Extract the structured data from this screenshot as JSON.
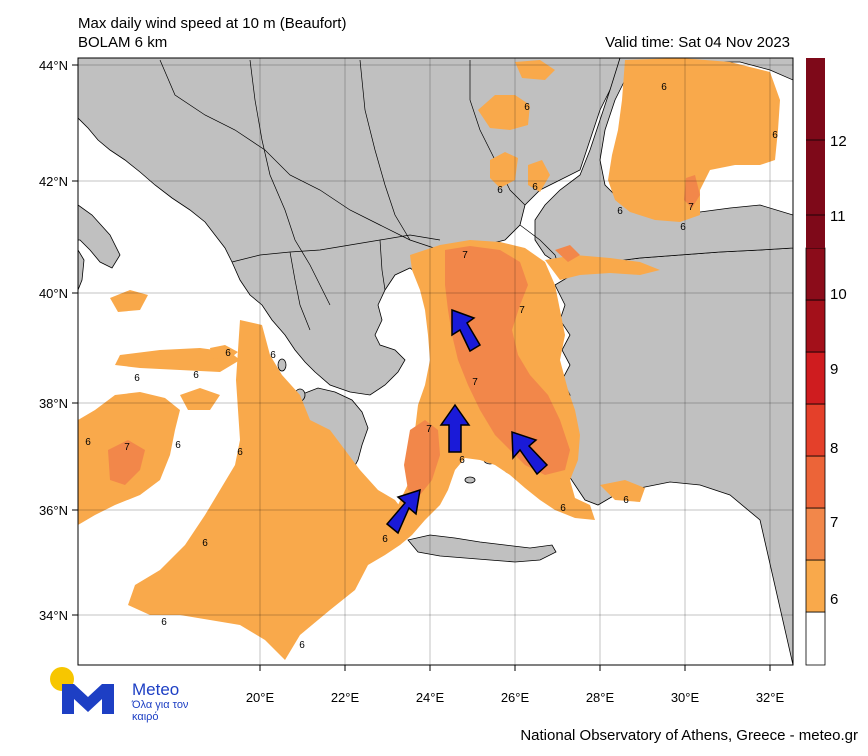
{
  "header": {
    "title": "Max daily wind speed at 10 m (Beaufort)",
    "subtitle": "BOLAM 6 km",
    "valid_time": "Valid time: Sat 04 Nov 2023"
  },
  "footer": {
    "credit": "National Observatory of Athens, Greece - meteo.gr"
  },
  "logo": {
    "word": "Meteo",
    "tagline": "Όλα για τον καιρό"
  },
  "map": {
    "lat_labels": [
      "44°N",
      "42°N",
      "40°N",
      "38°N",
      "36°N",
      "34°N"
    ],
    "lon_labels": [
      "20°E",
      "22°E",
      "24°E",
      "26°E",
      "28°E",
      "30°E",
      "32°E"
    ],
    "colors": {
      "land": "#c0c0c0",
      "sea": "#ffffff",
      "b6": "#f9a94b",
      "b7": "#f2874a",
      "arrow": "#1a1ad8"
    },
    "contour_labels": [
      "6",
      "6",
      "6",
      "6",
      "6",
      "6",
      "6",
      "6",
      "6",
      "6",
      "6",
      "6",
      "6",
      "6",
      "6",
      "6",
      "6",
      "6",
      "6",
      "6",
      "6",
      "7",
      "7",
      "7",
      "7",
      "7",
      "7"
    ]
  },
  "colorbar": {
    "labels": [
      "12",
      "11",
      "10",
      "9",
      "8",
      "7",
      "6"
    ],
    "colors": [
      "#ffffff",
      "#f9a94b",
      "#f2874a",
      "#ec6438",
      "#e4402a",
      "#cf1c1f",
      "#a3101a",
      "#7e0919"
    ]
  }
}
